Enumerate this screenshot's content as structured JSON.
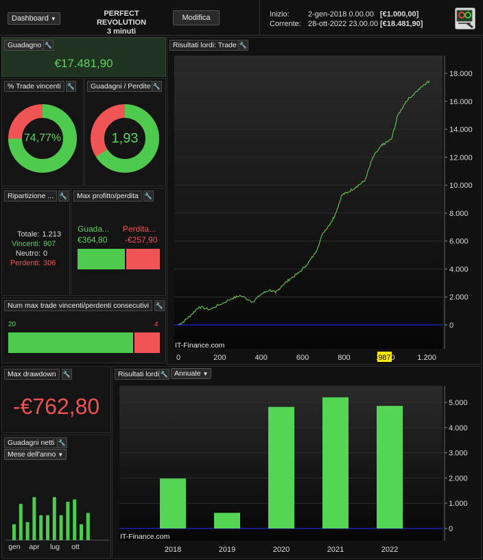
{
  "header": {
    "dashboard_label": "Dashboard",
    "system_name": "PERFECT REVOLUTION",
    "timeframe": "3 minuti",
    "edit_label": "Modifica",
    "start_label": "Inizio:",
    "start_date": "2-gen-2018 0.00.00",
    "start_value": "[€1.000,00]",
    "current_label": "Corrente:",
    "current_date": "28-ott-2022 23.00.00",
    "current_value": "[€18.481,90]"
  },
  "gain": {
    "title": "Guadagno",
    "value": "€17.481,90"
  },
  "win_pct": {
    "title": "% Trade vincenti",
    "value": "74,77%",
    "fraction": 0.7477
  },
  "gain_loss": {
    "title": "Guadagni / Perdite",
    "value": "1,93",
    "fraction": 0.659
  },
  "breakdown": {
    "title": "Ripartizione ...",
    "total_label": "Totale:",
    "total": "1.213",
    "win_label": "Vincenti:",
    "win": "907",
    "neutral_label": "Neutro:",
    "neutral": "0",
    "loss_label": "Perdenti:",
    "loss": "306"
  },
  "maxpl": {
    "title": "Max profitto/perdita",
    "gain_label": "Guada...",
    "gain_value": "€364,80",
    "loss_label": "Perdita...",
    "loss_value": "-€257,90",
    "gain_fraction": 0.586
  },
  "consec": {
    "title": "Num max trade vincenti/perdenti consecutivi",
    "wins": "20",
    "losses": "4",
    "win_fraction": 0.833
  },
  "drawdown": {
    "title": "Max drawdown",
    "value": "-€762,80"
  },
  "equity": {
    "title": "Risultati lordi: Trade",
    "watermark": "IT-Finance.com",
    "marker": "987",
    "y_ticks": [
      "18.000",
      "16.000",
      "14.000",
      "12.000",
      "10.000",
      "8.000",
      "6.000",
      "4.000",
      "2.000",
      "0"
    ],
    "x_ticks": [
      "0",
      "200",
      "400",
      "600",
      "800",
      "1.000",
      "1.200"
    ]
  },
  "annual": {
    "title": "Risultati lordi",
    "period_label": "Annuale",
    "watermark": "IT-Finance.com",
    "y_ticks": [
      "5.000",
      "4.000",
      "3.000",
      "2.000",
      "1.000",
      "0"
    ]
  },
  "monthly": {
    "title": "Guadagni netti",
    "period_label": "Mese dell'anno",
    "x_labels": [
      "gen",
      "apr",
      "lug",
      "ott"
    ]
  },
  "chart_data": [
    {
      "type": "line",
      "title": "Risultati lordi: Trade",
      "xlim": [
        0,
        1213
      ],
      "ylim": [
        0,
        18500
      ],
      "series": [
        {
          "values": [
            [
              0,
              0
            ],
            [
              30,
              300
            ],
            [
              60,
              700
            ],
            [
              100,
              1300
            ],
            [
              150,
              1100
            ],
            [
              200,
              1450
            ],
            [
              260,
              1900
            ],
            [
              300,
              2100
            ],
            [
              360,
              1650
            ],
            [
              400,
              2200
            ],
            [
              440,
              2500
            ],
            [
              470,
              2300
            ],
            [
              500,
              2800
            ],
            [
              540,
              3300
            ],
            [
              580,
              3700
            ],
            [
              620,
              4300
            ],
            [
              660,
              5100
            ],
            [
              700,
              6600
            ],
            [
              740,
              7400
            ],
            [
              760,
              8000
            ],
            [
              790,
              9300
            ],
            [
              820,
              9500
            ],
            [
              860,
              9900
            ],
            [
              900,
              10300
            ],
            [
              940,
              12000
            ],
            [
              980,
              12800
            ],
            [
              1000,
              13000
            ],
            [
              1030,
              13300
            ],
            [
              1060,
              15000
            ],
            [
              1100,
              16000
            ],
            [
              1150,
              16700
            ],
            [
              1190,
              17200
            ],
            [
              1213,
              17480
            ]
          ]
        }
      ]
    },
    {
      "type": "bar",
      "title": "Risultati lordi",
      "categories": [
        "2018",
        "2019",
        "2020",
        "2021",
        "2022"
      ],
      "values": [
        1980,
        620,
        4820,
        5200,
        4860
      ],
      "ylim": [
        0,
        5600
      ]
    },
    {
      "type": "bar",
      "title": "Guadagni netti",
      "categories": [
        "gen",
        "feb",
        "mar",
        "apr",
        "mag",
        "giu",
        "lug",
        "ago",
        "set",
        "ott",
        "nov",
        "dic"
      ],
      "values": [
        700,
        1600,
        800,
        1900,
        1100,
        1100,
        1900,
        1100,
        1700,
        1800,
        700,
        1200
      ],
      "ylim": [
        0,
        2200
      ]
    }
  ]
}
